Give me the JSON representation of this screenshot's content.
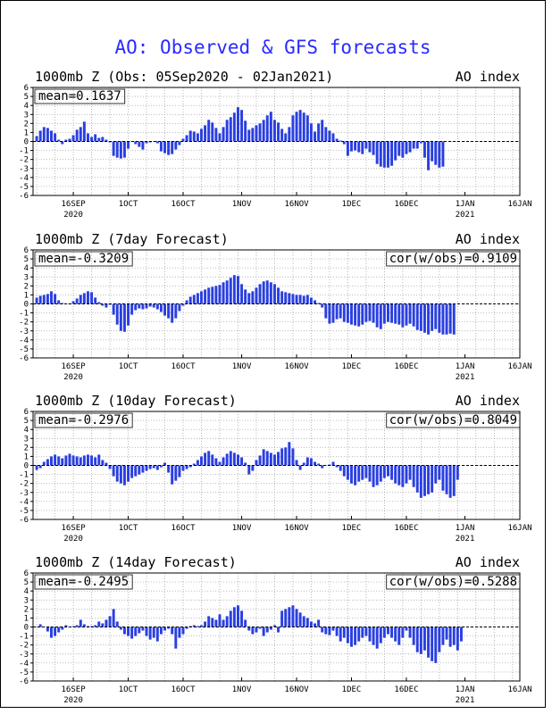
{
  "figure": {
    "title": "AO: Observed & GFS forecasts",
    "bar_color": "#2a3fe0",
    "title_color": "#2a2aff"
  },
  "chart_data": [
    {
      "type": "bar",
      "title": "1000mb Z (Obs: 05Sep2020 - 02Jan2021)",
      "right_label": "AO index",
      "stat_text": "mean=0.1637",
      "cor_text": "",
      "xlabel": "",
      "ylabel": "",
      "ylim": [
        -6,
        6
      ],
      "yticks": [
        6,
        5,
        4,
        3,
        2,
        1,
        0,
        -1,
        -2,
        -3,
        -4,
        -5,
        -6
      ],
      "x_day_range": [
        0,
        133
      ],
      "xticks": [
        {
          "label": "16SEP",
          "sub": "2020",
          "day": 11
        },
        {
          "label": "1OCT",
          "sub": "",
          "day": 26
        },
        {
          "label": "16OCT",
          "sub": "",
          "day": 41
        },
        {
          "label": "1NOV",
          "sub": "",
          "day": 57
        },
        {
          "label": "16NOV",
          "sub": "",
          "day": 72
        },
        {
          "label": "1DEC",
          "sub": "",
          "day": 87
        },
        {
          "label": "16DEC",
          "sub": "",
          "day": 102
        },
        {
          "label": "1JAN",
          "sub": "2021",
          "day": 118
        },
        {
          "label": "16JAN",
          "sub": "",
          "day": 133
        }
      ],
      "start_day": 1,
      "values": [
        0.6,
        1.2,
        1.6,
        1.5,
        1.2,
        0.9,
        0.2,
        -0.3,
        0.2,
        0.3,
        0.7,
        1.3,
        1.6,
        2.2,
        0.9,
        0.5,
        0.8,
        0.4,
        0.5,
        0.2,
        -0.1,
        -1.6,
        -1.8,
        -1.9,
        -1.8,
        -0.8,
        0,
        -0.3,
        -0.6,
        -0.9,
        -0.2,
        -0.1,
        0,
        -0.2,
        -1.1,
        -1.3,
        -1.5,
        -1.4,
        -0.9,
        -0.4,
        0.3,
        0.7,
        1.2,
        1.1,
        0.9,
        1.4,
        1.8,
        2.4,
        2.1,
        1.5,
        0.9,
        1.6,
        2.4,
        2.7,
        3.2,
        3.8,
        3.5,
        2.3,
        1.3,
        1.5,
        1.8,
        2.0,
        2.4,
        2.9,
        3.3,
        2.4,
        2.1,
        1.4,
        0.9,
        1.6,
        2.9,
        3.3,
        3.5,
        3.2,
        2.9,
        2.0,
        1.1,
        2.0,
        2.4,
        1.6,
        1.2,
        0.9,
        0.3,
        0.1,
        -0.3,
        -1.6,
        -1.1,
        -1.0,
        -1.2,
        -1.4,
        -0.8,
        -1.2,
        -1.5,
        -2.5,
        -2.8,
        -2.9,
        -2.9,
        -2.7,
        -2.1,
        -1.6,
        -1.8,
        -1.4,
        -1.2,
        -0.8,
        -0.8,
        -0.2,
        -1.8,
        -3.2,
        -2.2,
        -2.6,
        -2.9,
        -2.8
      ]
    },
    {
      "type": "bar",
      "title": "1000mb Z (7day Forecast)",
      "right_label": "AO index",
      "stat_text": "mean=-0.3209",
      "cor_text": "cor(w/obs)=0.9109",
      "xlabel": "",
      "ylabel": "",
      "ylim": [
        -6,
        6
      ],
      "yticks": [
        6,
        5,
        4,
        3,
        2,
        1,
        0,
        -1,
        -2,
        -3,
        -4,
        -5,
        -6
      ],
      "x_day_range": [
        0,
        133
      ],
      "xticks": [
        {
          "label": "16SEP",
          "sub": "2020",
          "day": 11
        },
        {
          "label": "1OCT",
          "sub": "",
          "day": 26
        },
        {
          "label": "16OCT",
          "sub": "",
          "day": 41
        },
        {
          "label": "1NOV",
          "sub": "",
          "day": 57
        },
        {
          "label": "16NOV",
          "sub": "",
          "day": 72
        },
        {
          "label": "1DEC",
          "sub": "",
          "day": 87
        },
        {
          "label": "16DEC",
          "sub": "",
          "day": 102
        },
        {
          "label": "1JAN",
          "sub": "2021",
          "day": 118
        },
        {
          "label": "16JAN",
          "sub": "",
          "day": 133
        }
      ],
      "start_day": 1,
      "values": [
        0.7,
        0.9,
        1.0,
        1.1,
        1.4,
        1.1,
        0.4,
        0.1,
        0,
        0,
        0.3,
        0.6,
        1.0,
        1.2,
        1.4,
        1.3,
        0.7,
        0.2,
        -0.2,
        -0.4,
        -0.1,
        -1.2,
        -2.3,
        -3.0,
        -3.1,
        -2.4,
        -1.2,
        -0.7,
        -0.5,
        -0.6,
        -0.5,
        -0.3,
        -0.4,
        -0.6,
        -0.9,
        -1.3,
        -1.6,
        -2.1,
        -1.6,
        -0.8,
        -0.2,
        0.4,
        0.8,
        1.0,
        1.2,
        1.4,
        1.6,
        1.8,
        1.9,
        2.0,
        2.1,
        2.4,
        2.6,
        2.9,
        3.2,
        3.1,
        2.2,
        1.6,
        1.2,
        1.4,
        1.8,
        2.2,
        2.5,
        2.6,
        2.4,
        2.2,
        1.8,
        1.4,
        1.3,
        1.2,
        1.1,
        1.0,
        1.0,
        0.9,
        1.0,
        0.7,
        0.4,
        0.1,
        -0.4,
        -1.6,
        -2.2,
        -2.1,
        -1.7,
        -1.6,
        -2.0,
        -2.1,
        -2.3,
        -2.4,
        -2.5,
        -2.3,
        -2.0,
        -1.9,
        -2.1,
        -2.6,
        -2.8,
        -2.2,
        -2.0,
        -2.1,
        -2.2,
        -2.3,
        -2.6,
        -2.4,
        -2.2,
        -2.5,
        -2.9,
        -3.0,
        -3.2,
        -3.4,
        -3.0,
        -2.8,
        -3.2,
        -3.4,
        -3.4,
        -3.3,
        -3.4
      ]
    },
    {
      "type": "bar",
      "title": "1000mb Z (10day Forecast)",
      "right_label": "AO index",
      "stat_text": "mean=-0.2976",
      "cor_text": "cor(w/obs)=0.8049",
      "xlabel": "",
      "ylabel": "",
      "ylim": [
        -6,
        6
      ],
      "yticks": [
        6,
        5,
        4,
        3,
        2,
        1,
        0,
        -1,
        -2,
        -3,
        -4,
        -5,
        -6
      ],
      "x_day_range": [
        0,
        133
      ],
      "xticks": [
        {
          "label": "16SEP",
          "sub": "2020",
          "day": 11
        },
        {
          "label": "1OCT",
          "sub": "",
          "day": 26
        },
        {
          "label": "16OCT",
          "sub": "",
          "day": 41
        },
        {
          "label": "1NOV",
          "sub": "",
          "day": 57
        },
        {
          "label": "16NOV",
          "sub": "",
          "day": 72
        },
        {
          "label": "1DEC",
          "sub": "",
          "day": 87
        },
        {
          "label": "16DEC",
          "sub": "",
          "day": 102
        },
        {
          "label": "1JAN",
          "sub": "2021",
          "day": 118
        },
        {
          "label": "16JAN",
          "sub": "",
          "day": 133
        }
      ],
      "start_day": 1,
      "values": [
        -0.5,
        -0.3,
        0.4,
        0.7,
        1.0,
        1.2,
        1.0,
        0.8,
        1.1,
        1.3,
        1.1,
        1.0,
        0.9,
        1.1,
        1.2,
        1.1,
        0.9,
        1.2,
        0.6,
        0.3,
        -0.4,
        -1.2,
        -1.8,
        -2.0,
        -2.2,
        -1.8,
        -1.4,
        -1.2,
        -1.0,
        -0.8,
        -0.6,
        -0.4,
        -0.3,
        -0.5,
        -0.2,
        0.3,
        -0.8,
        -2.1,
        -1.7,
        -1.3,
        -0.6,
        -0.4,
        -0.2,
        0.2,
        0.6,
        1.0,
        1.4,
        1.6,
        1.2,
        0.8,
        0.4,
        0.9,
        1.3,
        1.6,
        1.4,
        1.2,
        0.9,
        0.3,
        -1.0,
        -0.6,
        0.6,
        1.1,
        1.8,
        1.6,
        1.4,
        1.2,
        1.5,
        1.9,
        2.0,
        2.6,
        1.9,
        0.6,
        -0.5,
        0.3,
        0.9,
        0.8,
        0.4,
        0.2,
        -0.3,
        0,
        0.1,
        0.4,
        -0.2,
        -0.6,
        -1.2,
        -1.6,
        -2.0,
        -2.2,
        -1.8,
        -1.6,
        -1.4,
        -1.8,
        -2.4,
        -2.2,
        -1.8,
        -1.4,
        -1.2,
        -1.6,
        -2.0,
        -2.2,
        -2.4,
        -2.0,
        -1.6,
        -2.4,
        -3.0,
        -3.6,
        -3.4,
        -3.2,
        -3.0,
        -2.0,
        -1.6,
        -2.8,
        -3.2,
        -3.6,
        -3.4,
        -1.6
      ]
    },
    {
      "type": "bar",
      "title": "1000mb Z (14day Forecast)",
      "right_label": "AO index",
      "stat_text": "mean=-0.2495",
      "cor_text": "cor(w/obs)=0.5288",
      "xlabel": "",
      "ylabel": "",
      "ylim": [
        -6,
        6
      ],
      "yticks": [
        6,
        5,
        4,
        3,
        2,
        1,
        0,
        -1,
        -2,
        -3,
        -4,
        -5,
        -6
      ],
      "x_day_range": [
        0,
        133
      ],
      "xticks": [
        {
          "label": "16SEP",
          "sub": "2020",
          "day": 11
        },
        {
          "label": "1OCT",
          "sub": "",
          "day": 26
        },
        {
          "label": "16OCT",
          "sub": "",
          "day": 41
        },
        {
          "label": "1NOV",
          "sub": "",
          "day": 57
        },
        {
          "label": "16NOV",
          "sub": "",
          "day": 72
        },
        {
          "label": "1DEC",
          "sub": "",
          "day": 87
        },
        {
          "label": "16DEC",
          "sub": "",
          "day": 102
        },
        {
          "label": "1JAN",
          "sub": "2021",
          "day": 118
        },
        {
          "label": "16JAN",
          "sub": "",
          "day": 133
        }
      ],
      "start_day": 1,
      "values": [
        0,
        0.3,
        0,
        -0.5,
        -1.2,
        -1.0,
        -0.6,
        -0.3,
        0.2,
        0,
        0.1,
        0.2,
        0.8,
        0.3,
        0.1,
        0.1,
        0.2,
        0.6,
        0.4,
        0.8,
        1.2,
        2.0,
        0.6,
        -0.3,
        -0.8,
        -1.0,
        -1.3,
        -1.0,
        -0.7,
        -0.4,
        -1.0,
        -1.4,
        -1.2,
        -1.6,
        -0.8,
        -0.4,
        -0.2,
        -0.8,
        -2.4,
        -1.2,
        -0.8,
        -0.2,
        0.1,
        0.2,
        0.1,
        0.2,
        0.6,
        1.2,
        1.0,
        0.8,
        1.4,
        0.8,
        1.2,
        1.8,
        2.2,
        2.4,
        1.8,
        0.8,
        -0.4,
        -0.8,
        -0.6,
        -0.2,
        -1.0,
        -0.6,
        -0.3,
        0.2,
        -0.6,
        1.8,
        2.0,
        2.2,
        2.4,
        2.0,
        1.6,
        1.2,
        1.0,
        0.6,
        0.4,
        0.8,
        -0.6,
        -0.8,
        -0.9,
        -0.4,
        -1.0,
        -1.6,
        -1.2,
        -1.8,
        -2.2,
        -2.0,
        -1.6,
        -1.2,
        -1.0,
        -1.6,
        -2.0,
        -2.4,
        -1.8,
        -1.2,
        -0.8,
        -1.2,
        -1.6,
        -2.0,
        -1.2,
        -0.4,
        -1.2,
        -2.0,
        -2.8,
        -3.0,
        -2.6,
        -3.4,
        -3.8,
        -4.0,
        -2.8,
        -2.0,
        -1.4,
        -2.2,
        -2.0,
        -2.6,
        -1.6
      ]
    }
  ]
}
